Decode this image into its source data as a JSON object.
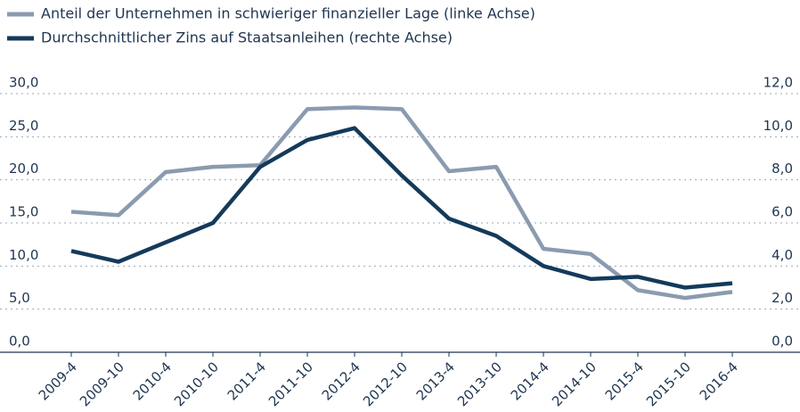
{
  "chart_data": {
    "type": "line",
    "categories": [
      "2009-4",
      "2009-10",
      "2010-4",
      "2010-10",
      "2011-4",
      "2011-10",
      "2012-4",
      "2012-10",
      "2013-4",
      "2013-10",
      "2014-4",
      "2014-10",
      "2015-4",
      "2015-10",
      "2016-4"
    ],
    "series": [
      {
        "name": "Anteil der Unternehmen in schwieriger finanzieller Lage (linke Achse)",
        "color": "#8a9bb0",
        "axis": "y",
        "values": [
          16.3,
          15.9,
          20.9,
          21.5,
          21.7,
          28.2,
          28.4,
          28.2,
          21.0,
          21.5,
          12.0,
          11.4,
          7.2,
          6.3,
          7.0
        ]
      },
      {
        "name": "Durchschnittlicher Zins auf Staatsanleihen (rechte Achse)",
        "color": "#143a5a",
        "axis": "y2",
        "values": [
          4.7,
          4.2,
          5.1,
          6.0,
          8.6,
          9.85,
          10.4,
          8.2,
          6.2,
          5.4,
          4.0,
          3.4,
          3.5,
          3.0,
          3.2
        ]
      }
    ],
    "ylim": [
      0,
      30
    ],
    "yticks": [
      {
        "value": 0,
        "label": "0,0"
      },
      {
        "value": 5,
        "label": "5,0"
      },
      {
        "value": 10,
        "label": "10,0"
      },
      {
        "value": 15,
        "label": "15,0"
      },
      {
        "value": 20,
        "label": "20,0"
      },
      {
        "value": 25,
        "label": "25,0"
      },
      {
        "value": 30,
        "label": "30,0"
      }
    ],
    "y2lim": [
      0,
      12
    ],
    "y2ticks": [
      {
        "value": 0,
        "label": "0,0"
      },
      {
        "value": 2,
        "label": "2,0"
      },
      {
        "value": 4,
        "label": "4,0"
      },
      {
        "value": 6,
        "label": "6,0"
      },
      {
        "value": 8,
        "label": "8,0"
      },
      {
        "value": 10,
        "label": "10,0"
      },
      {
        "value": 12,
        "label": "12,0"
      }
    ],
    "grid": true,
    "legend": "top-left"
  }
}
